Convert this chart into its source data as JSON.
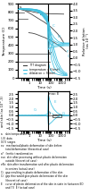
{
  "background_color": "#ffffff",
  "ttt_color": "#444444",
  "cyan_color": "#40c0e0",
  "black": "#000000",
  "top_panel": {
    "ylabel": "Temperature (C)",
    "ylabel2": "Relative dilation\n(as 10^-3)",
    "ylim": [
      0,
      900
    ],
    "ylim2": [
      -1.5,
      4.0
    ],
    "xlim_log": [
      0.1,
      5000
    ],
    "yticks": [
      0,
      100,
      200,
      300,
      400,
      500,
      600,
      700,
      800,
      900
    ],
    "yticks2": [
      -1.5,
      -1.0,
      -0.5,
      0.0,
      0.5,
      1.0,
      1.5,
      2.0,
      2.5,
      3.0,
      3.5,
      4.0
    ],
    "xticks": [
      1,
      10,
      100,
      1000
    ],
    "xticklabels": [
      "1",
      "10",
      "100",
      "1000"
    ],
    "xlabel": "Time (s)"
  },
  "bottom_panel": {
    "ylabel": "Difference in dilation\nrelative between bore\nand skin (as 10^-3)",
    "ylim": [
      -1.8,
      2.8
    ],
    "xlim_log": [
      0.1,
      5000
    ],
    "yticks": [
      -1.5,
      -1.0,
      -0.5,
      0.0,
      0.5,
      1.0,
      1.5,
      2.0,
      2.5
    ],
    "xticks": [
      1,
      10,
      100,
      1000
    ],
    "xticklabels": [
      "1",
      "10",
      "100",
      "1000"
    ],
    "xlabel": "Time (s)"
  },
  "legend_lines": [
    {
      "style": "solid",
      "color": "#444444",
      "label": "TTT diagram"
    },
    {
      "style": "dashed",
      "color": "#40c0e0",
      "label": "temperature = f(time)"
    },
    {
      "style": "dashed",
      "color": "#40c0e0",
      "label": "dilatation = f(time)"
    }
  ],
  "note_lines": [
    "a    skin temperature (C)",
    "I, III  data",
    "0,I'II  stages",
    "ev   mechanical/plastic deformation of skin before",
    "      total deformation (theoretical case)",
    "a*   ferritic transformation",
    "evo  skin after processing without plastic deformation",
    "      outside (theoretical case)",
    "eRn  skin after transformation and after plastic deformation",
    "      in centres (actual case)",
    "Ci   gap resulting in plastic deformation of the skin",
    "Ci'  gap that would give plastic deformation of the skin",
    "      (theoretical case)",
    "E    curve of plastic deformation of the skin in state in (between EO",
    "      and I'III  E) (actual case)"
  ]
}
